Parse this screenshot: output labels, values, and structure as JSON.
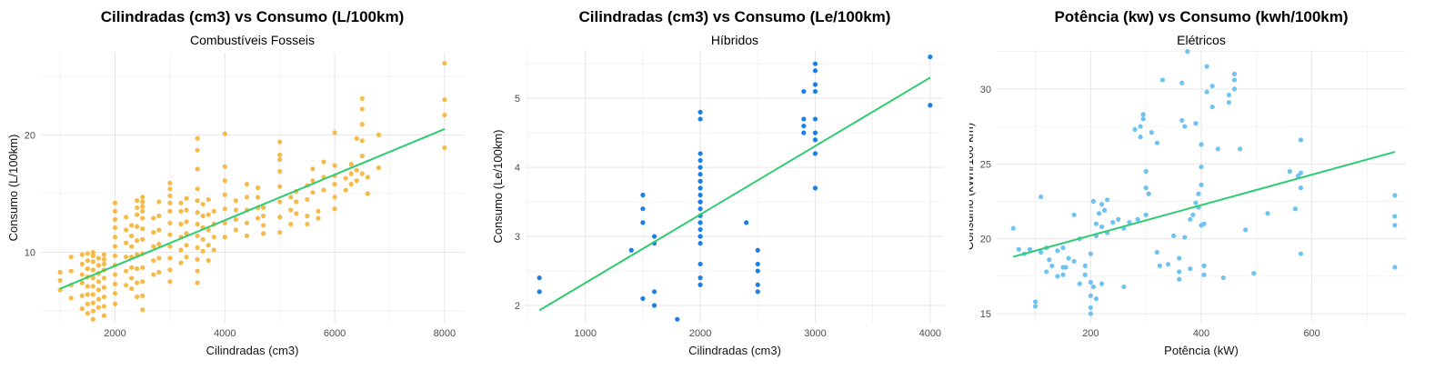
{
  "chart_data": [
    {
      "type": "scatter",
      "title": "Cilindradas (cm3) vs Consumo (L/100km)",
      "subtitle": "Combustíveis Fosseis",
      "xlabel": "Cilindradas (cm3)",
      "ylabel": "Consumo (L/100km)",
      "xlim": [
        650,
        8350
      ],
      "ylim": [
        4,
        27
      ],
      "xticks": [
        2000,
        4000,
        6000,
        8000
      ],
      "yticks": [
        10,
        20
      ],
      "grid": true,
      "point_color": "#F5BA4A",
      "line_color": "#2ECC71",
      "trend": {
        "x": [
          1000,
          8000
        ],
        "y": [
          6.9,
          20.5
        ]
      },
      "points": {
        "x": [
          1000,
          1000,
          1000,
          1200,
          1200,
          1200,
          1200,
          1400,
          1400,
          1400,
          1400,
          1400,
          1400,
          1500,
          1500,
          1500,
          1500,
          1500,
          1500,
          1500,
          1500,
          1600,
          1600,
          1600,
          1600,
          1600,
          1600,
          1600,
          1600,
          1600,
          1600,
          1700,
          1700,
          1700,
          1700,
          1700,
          1700,
          1700,
          1800,
          1800,
          1800,
          1800,
          1800,
          1800,
          1800,
          1800,
          1800,
          2000,
          2000,
          2000,
          2000,
          2000,
          2000,
          2000,
          2000,
          2000,
          2000,
          2000,
          2000,
          2200,
          2200,
          2200,
          2200,
          2200,
          2200,
          2300,
          2300,
          2300,
          2300,
          2300,
          2300,
          2300,
          2400,
          2400,
          2400,
          2400,
          2400,
          2400,
          2400,
          2400,
          2400,
          2500,
          2500,
          2500,
          2500,
          2500,
          2500,
          2500,
          2500,
          2500,
          2500,
          2500,
          2500,
          2700,
          2700,
          2700,
          2700,
          2700,
          2800,
          2800,
          2800,
          2800,
          2800,
          2800,
          3000,
          3000,
          3000,
          3000,
          3000,
          3000,
          3000,
          3000,
          3000,
          3000,
          3000,
          3200,
          3200,
          3200,
          3200,
          3200,
          3200,
          3300,
          3300,
          3300,
          3300,
          3300,
          3300,
          3500,
          3500,
          3500,
          3500,
          3500,
          3500,
          3500,
          3500,
          3500,
          3500,
          3500,
          3500,
          3600,
          3600,
          3600,
          3600,
          3600,
          3700,
          3700,
          3700,
          3700,
          3700,
          3800,
          3800,
          3800,
          3800,
          4000,
          4000,
          4000,
          4000,
          4000,
          4000,
          4000,
          4200,
          4200,
          4200,
          4200,
          4400,
          4400,
          4400,
          4400,
          4400,
          4600,
          4600,
          4600,
          4600,
          4700,
          4700,
          4700,
          4700,
          5000,
          5000,
          5000,
          5000,
          5000,
          5000,
          5000,
          5000,
          5200,
          5200,
          5200,
          5300,
          5300,
          5300,
          5500,
          5500,
          5500,
          5500,
          5600,
          5600,
          5600,
          5700,
          5700,
          5800,
          5800,
          5800,
          6000,
          6000,
          6000,
          6000,
          6000,
          6000,
          6200,
          6200,
          6300,
          6300,
          6300,
          6400,
          6400,
          6400,
          6500,
          6500,
          6500,
          6500,
          6500,
          6500,
          6600,
          6600,
          6800,
          6800,
          8000,
          8000,
          8000,
          8000
        ],
        "y": [
          6.8,
          7.6,
          8.3,
          6.1,
          7.2,
          8.4,
          9.6,
          5.2,
          6.3,
          7.4,
          8.1,
          9.0,
          9.8,
          4.8,
          5.6,
          6.4,
          7.1,
          7.9,
          8.6,
          9.3,
          9.9,
          4.3,
          5.0,
          5.7,
          6.4,
          7.1,
          7.8,
          8.5,
          9.2,
          9.7,
          10.0,
          5.3,
          6.0,
          6.8,
          7.5,
          8.2,
          8.9,
          9.5,
          4.6,
          5.4,
          6.2,
          7.0,
          7.8,
          8.5,
          9.0,
          9.4,
          9.8,
          5.6,
          6.5,
          7.3,
          8.1,
          8.9,
          9.7,
          10.5,
          11.3,
          12.1,
          12.8,
          13.5,
          14.2,
          7.2,
          8.4,
          9.6,
          10.8,
          11.9,
          13.0,
          6.9,
          7.8,
          8.7,
          9.6,
          10.5,
          11.4,
          12.3,
          6.2,
          7.4,
          8.6,
          9.8,
          11.0,
          12.2,
          13.2,
          13.8,
          14.4,
          5.1,
          6.3,
          7.5,
          8.7,
          9.9,
          11.1,
          12.0,
          12.9,
          13.5,
          13.9,
          14.3,
          14.7,
          8.1,
          9.3,
          10.5,
          11.7,
          12.9,
          8.3,
          9.5,
          10.7,
          11.9,
          13.1,
          14.3,
          7.5,
          8.5,
          9.5,
          10.5,
          11.5,
          12.5,
          13.5,
          14.2,
          14.8,
          15.4,
          15.9,
          9.1,
          10.2,
          11.3,
          12.4,
          13.5,
          14.2,
          9.6,
          10.6,
          11.6,
          12.6,
          13.6,
          14.6,
          7.4,
          8.4,
          9.4,
          10.4,
          11.4,
          12.4,
          13.4,
          14.4,
          15.4,
          17.1,
          18.7,
          19.7,
          10.1,
          11.1,
          12.1,
          13.1,
          14.1,
          9.3,
          10.6,
          11.9,
          13.2,
          14.5,
          10.2,
          11.3,
          12.4,
          13.5,
          11.3,
          12.5,
          13.7,
          14.9,
          16.1,
          17.3,
          20.1,
          11.9,
          12.8,
          13.6,
          14.4,
          11.4,
          12.5,
          13.6,
          14.7,
          15.8,
          12.9,
          13.8,
          14.7,
          15.5,
          11.6,
          12.3,
          13.1,
          13.8,
          11.7,
          13.0,
          14.3,
          15.6,
          16.9,
          17.9,
          18.3,
          19.4,
          12.4,
          13.6,
          14.7,
          13.3,
          14.3,
          15.2,
          12.4,
          13.1,
          14.5,
          15.7,
          15.1,
          16.1,
          17.1,
          12.9,
          13.5,
          15.3,
          16.4,
          17.7,
          13.7,
          14.7,
          15.8,
          16.5,
          17.4,
          20.2,
          15.3,
          16.3,
          15.8,
          16.7,
          17.5,
          16.1,
          17.0,
          19.7,
          16.7,
          18.2,
          19.5,
          20.9,
          22.2,
          23.1,
          15.0,
          16.4,
          17.2,
          20.0,
          18.9,
          21.7,
          23.0,
          26.1
        ]
      }
    },
    {
      "type": "scatter",
      "title": "Cilindradas (cm3) vs Consumo (Le/100km)",
      "subtitle": "Híbridos",
      "xlabel": "Cilindradas (cm3)",
      "ylabel": "Consumo (Le/100km)",
      "xlim": [
        480,
        4120
      ],
      "ylim": [
        1.75,
        5.7
      ],
      "xticks": [
        1000,
        2000,
        3000,
        4000
      ],
      "yticks": [
        2,
        3,
        4,
        5
      ],
      "grid": true,
      "point_color": "#1C7FE8",
      "line_color": "#2ECC71",
      "trend": {
        "x": [
          600,
          4000
        ],
        "y": [
          1.93,
          5.3
        ]
      },
      "points": {
        "x": [
          600,
          600,
          1400,
          1500,
          1500,
          1500,
          1500,
          1600,
          1600,
          1600,
          1600,
          1800,
          2000,
          2000,
          2000,
          2000,
          2000,
          2000,
          2000,
          2000,
          2000,
          2000,
          2000,
          2000,
          2000,
          2000,
          2000,
          2000,
          2000,
          2000,
          2000,
          2000,
          2000,
          2000,
          2000,
          2400,
          2500,
          2500,
          2500,
          2500,
          2500,
          2900,
          2900,
          2900,
          2900,
          3000,
          3000,
          3000,
          3000,
          3000,
          3000,
          3000,
          3000,
          3000,
          4000,
          4000
        ],
        "y": [
          2.4,
          2.2,
          2.8,
          2.1,
          3.2,
          3.4,
          3.6,
          2.0,
          2.2,
          2.9,
          3.0,
          1.8,
          2.3,
          2.4,
          2.6,
          3.0,
          3.1,
          3.2,
          3.3,
          3.4,
          3.5,
          3.6,
          3.7,
          3.8,
          3.9,
          4.0,
          4.1,
          4.2,
          4.7,
          4.8,
          2.9,
          3.0,
          3.2,
          3.5,
          3.8,
          3.2,
          2.2,
          2.3,
          2.5,
          2.8,
          2.6,
          4.5,
          4.6,
          4.7,
          5.1,
          3.7,
          4.2,
          4.4,
          4.5,
          4.7,
          5.1,
          5.2,
          5.4,
          5.5,
          4.9,
          5.6
        ]
      }
    },
    {
      "type": "scatter",
      "title": "Potência (kw) vs Consumo (kwh/100km)",
      "subtitle": "Elétricos",
      "xlabel": "Potência (kW)",
      "ylabel": "Consumo (kWh/100 km)",
      "xlim": [
        30,
        770
      ],
      "ylim": [
        14.4,
        32.6
      ],
      "xticks": [
        200,
        400,
        600
      ],
      "yticks": [
        15,
        20,
        25,
        30
      ],
      "grid": true,
      "point_color": "#6EC3F0",
      "line_color": "#2ECC71",
      "trend": {
        "x": [
          60,
          750
        ],
        "y": [
          18.8,
          25.8
        ]
      },
      "points": {
        "x": [
          60,
          70,
          80,
          90,
          100,
          100,
          110,
          110,
          120,
          120,
          125,
          130,
          140,
          140,
          150,
          150,
          150,
          155,
          160,
          170,
          170,
          180,
          180,
          190,
          190,
          200,
          200,
          200,
          200,
          200,
          205,
          205,
          210,
          210,
          210,
          215,
          220,
          220,
          220,
          225,
          230,
          230,
          240,
          250,
          260,
          260,
          270,
          280,
          285,
          290,
          290,
          295,
          295,
          300,
          300,
          300,
          305,
          310,
          320,
          320,
          325,
          330,
          340,
          350,
          360,
          360,
          360,
          365,
          365,
          370,
          370,
          375,
          380,
          380,
          385,
          390,
          390,
          395,
          395,
          400,
          400,
          400,
          400,
          405,
          405,
          405,
          410,
          410,
          420,
          420,
          430,
          440,
          450,
          450,
          460,
          460,
          460,
          470,
          480,
          495,
          520,
          560,
          570,
          575,
          580,
          580,
          580,
          580,
          750,
          750,
          750,
          750
        ],
        "y": [
          20.7,
          19.3,
          19.0,
          19.3,
          15.5,
          15.8,
          22.8,
          19.1,
          17.8,
          19.4,
          18.6,
          18.2,
          17.5,
          19.2,
          18.1,
          17.6,
          19.4,
          18.1,
          18.7,
          21.6,
          18.5,
          20.0,
          17.0,
          17.6,
          18.2,
          19.0,
          15.0,
          15.4,
          16.2,
          17.1,
          22.5,
          16.8,
          20.2,
          21.0,
          16.0,
          21.7,
          22.3,
          20.8,
          17.0,
          21.9,
          22.6,
          20.4,
          21.1,
          21.3,
          16.8,
          20.7,
          21.1,
          27.3,
          21.3,
          26.8,
          27.5,
          28.0,
          28.3,
          24.5,
          23.4,
          21.6,
          23.0,
          27.1,
          19.1,
          26.4,
          18.2,
          30.6,
          18.3,
          20.2,
          18.7,
          17.3,
          17.8,
          27.9,
          30.4,
          27.5,
          20.1,
          32.5,
          21.3,
          18.0,
          21.6,
          27.7,
          22.4,
          22.1,
          23.0,
          23.6,
          26.3,
          24.8,
          20.9,
          21.0,
          18.2,
          17.6,
          31.5,
          29.8,
          28.8,
          30.2,
          26.0,
          17.4,
          29.1,
          29.6,
          30.0,
          31.0,
          30.6,
          26.0,
          20.6,
          17.7,
          21.7,
          24.5,
          22.0,
          24.2,
          24.4,
          26.6,
          23.4,
          19.0,
          18.1,
          20.9,
          21.5,
          22.9
        ]
      }
    }
  ]
}
